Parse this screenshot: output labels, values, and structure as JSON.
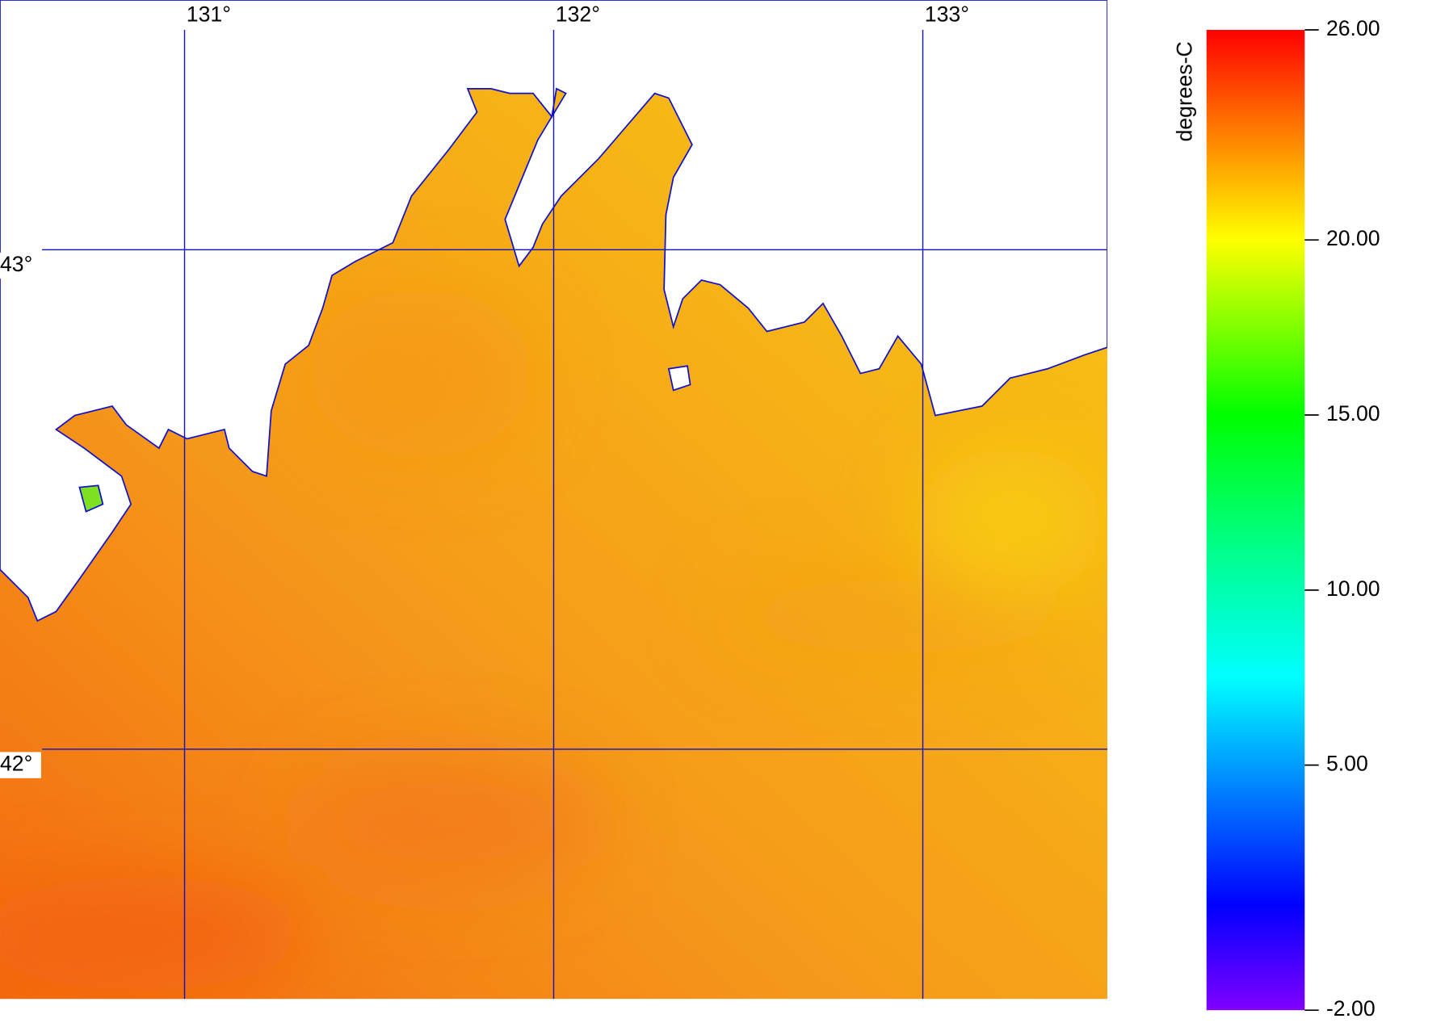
{
  "map": {
    "longitudes": [
      {
        "value": 131,
        "label": "131°"
      },
      {
        "value": 132,
        "label": "132°"
      },
      {
        "value": 133,
        "label": "133°"
      }
    ],
    "latitudes": [
      {
        "value": 43,
        "label": "43°"
      },
      {
        "value": 42,
        "label": "42°"
      }
    ],
    "lon_range": [
      130.5,
      133.5
    ],
    "lat_range": [
      41.5,
      43.5
    ]
  },
  "colorbar": {
    "title": "degrees-C",
    "range": [
      -2,
      26
    ],
    "ticks": [
      {
        "value": 26,
        "label": "26.00"
      },
      {
        "value": 20,
        "label": "20.00"
      },
      {
        "value": 15,
        "label": "15.00"
      },
      {
        "value": 10,
        "label": "10.00"
      },
      {
        "value": 5,
        "label": "5.00"
      },
      {
        "value": -2,
        "label": "-2.00"
      }
    ],
    "colors": [
      {
        "value": 26,
        "color": "#ff0000"
      },
      {
        "value": 23,
        "color": "#ff8000"
      },
      {
        "value": 20,
        "color": "#ffff00"
      },
      {
        "value": 15,
        "color": "#00ff00"
      },
      {
        "value": 11,
        "color": "#00ff90"
      },
      {
        "value": 7.5,
        "color": "#00ffff"
      },
      {
        "value": 1,
        "color": "#0000ff"
      },
      {
        "value": -2,
        "color": "#8000ff"
      }
    ]
  }
}
